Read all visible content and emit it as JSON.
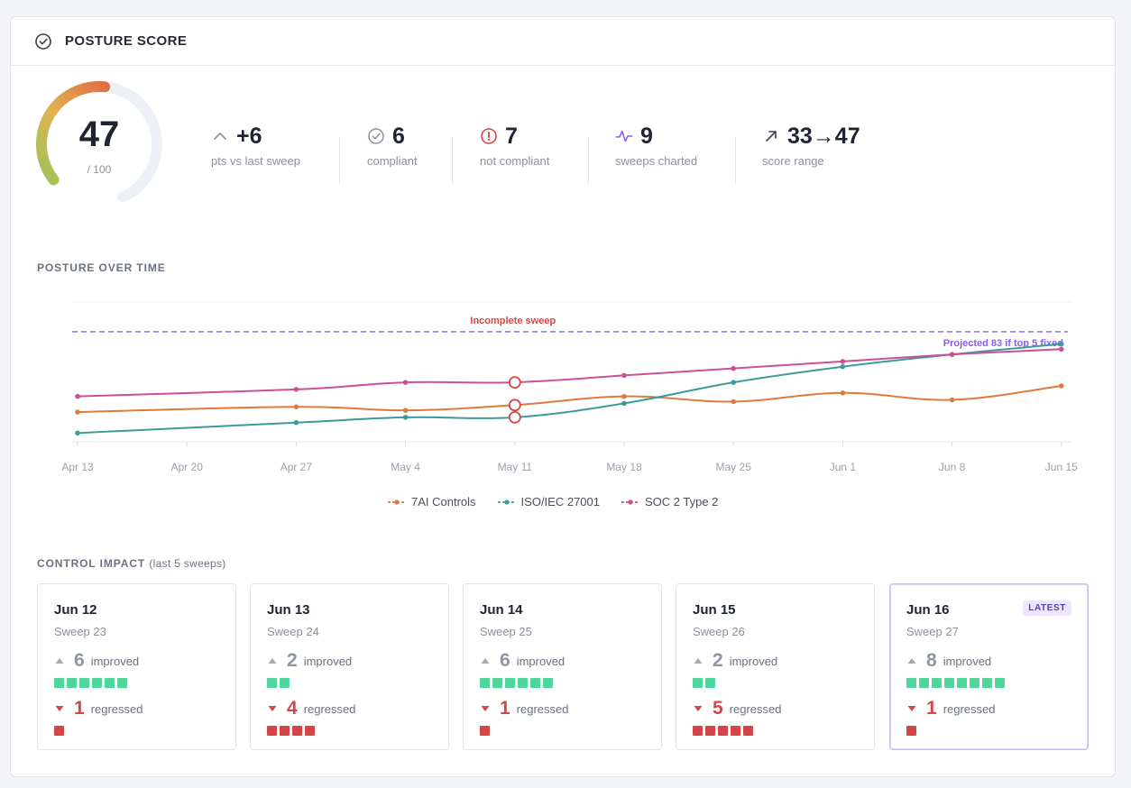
{
  "header": {
    "title": "POSTURE SCORE",
    "icon": "check-circle-icon"
  },
  "score": {
    "value": "47",
    "max_label": "/ 100",
    "value_num": 47,
    "max": 100
  },
  "stats": [
    {
      "icon": "chevron-up-icon",
      "value": "+6",
      "label": "pts vs last sweep",
      "color": "#8a909c"
    },
    {
      "icon": "check-circle-icon",
      "value": "6",
      "label": "compliant",
      "color": "#8a909c"
    },
    {
      "icon": "alert-circle-icon",
      "value": "7",
      "label": "not compliant",
      "color": "#d94545"
    },
    {
      "icon": "activity-icon",
      "value": "9",
      "label": "sweeps charted",
      "color": "#8b5cf6"
    },
    {
      "icon": "arrow-up-right-icon",
      "value": "33→47",
      "label": "score range",
      "color": "#5a606c"
    }
  ],
  "posture": {
    "title": "POSTURE OVER TIME"
  },
  "chart_data": {
    "type": "line",
    "x": [
      "Apr 13",
      "Apr 20",
      "Apr 27",
      "May 4",
      "May 11",
      "May 18",
      "May 25",
      "Jun 1",
      "Jun 8",
      "Jun 15"
    ],
    "series": [
      {
        "name": "7AI Controls",
        "color": "#df7a3e",
        "x": [
          "Apr 13",
          "Apr 27",
          "May 4",
          "May 11",
          "May 18",
          "May 25",
          "Jun 1",
          "Jun 8",
          "Jun 15"
        ],
        "values": [
          37,
          40,
          38,
          41,
          46,
          43,
          48,
          44,
          52
        ]
      },
      {
        "name": "ISO/IEC 27001",
        "color": "#3c9b98",
        "x": [
          "Apr 13",
          "Apr 27",
          "May 4",
          "May 11",
          "May 18",
          "May 25",
          "Jun 1",
          "Jun 8",
          "Jun 15"
        ],
        "values": [
          25,
          31,
          34,
          34,
          42,
          54,
          63,
          70,
          76
        ]
      },
      {
        "name": "SOC 2 Type 2",
        "color": "#cc4f9a",
        "x": [
          "Apr 13",
          "Apr 27",
          "May 4",
          "May 11",
          "May 18",
          "May 25",
          "Jun 1",
          "Jun 8",
          "Jun 15"
        ],
        "values": [
          46,
          50,
          54,
          54,
          58,
          62,
          66,
          70,
          73
        ]
      }
    ],
    "incomplete_sweep": {
      "label": "Incomplete sweep",
      "x": "May 11",
      "color": "#d94545"
    },
    "projection": {
      "label": "Projected 83 if top 5 fixed",
      "value": 83,
      "color": "#8b5cf6"
    },
    "ylim": [
      20,
      100
    ],
    "grid": false,
    "legend_position": "bottom"
  },
  "control_impact": {
    "title": "CONTROL IMPACT",
    "subtitle": "(last 5 sweeps)",
    "improved_label": "improved",
    "regressed_label": "regressed",
    "sweeps": [
      {
        "date": "Jun 12",
        "name": "Sweep 23",
        "improved": 6,
        "regressed": 1,
        "improved_text": "6",
        "regressed_text": "1"
      },
      {
        "date": "Jun 13",
        "name": "Sweep 24",
        "improved": 2,
        "regressed": 4,
        "improved_text": "2",
        "regressed_text": "4"
      },
      {
        "date": "Jun 14",
        "name": "Sweep 25",
        "improved": 6,
        "regressed": 1,
        "improved_text": "6",
        "regressed_text": "1"
      },
      {
        "date": "Jun 15",
        "name": "Sweep 26",
        "improved": 2,
        "regressed": 5,
        "improved_text": "2",
        "regressed_text": "5"
      },
      {
        "date": "Jun 16",
        "name": "Sweep 27",
        "improved": 8,
        "regressed": 1,
        "improved_text": "8",
        "regressed_text": "1",
        "badge": "LATEST"
      }
    ]
  }
}
